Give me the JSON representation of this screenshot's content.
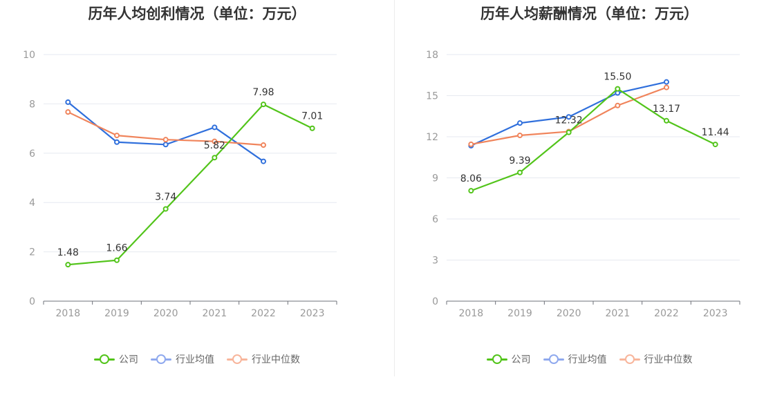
{
  "chart_data": [
    {
      "type": "line",
      "title": "历年人均创利情况（单位：万元）",
      "categories": [
        "2018",
        "2019",
        "2020",
        "2021",
        "2022",
        "2023"
      ],
      "ylim": [
        0,
        10
      ],
      "yticks": [
        0,
        2,
        4,
        6,
        8,
        10
      ],
      "grid": true,
      "legend_position": "bottom",
      "series": [
        {
          "name": "公司",
          "color": "#52c41a",
          "values": [
            1.48,
            1.66,
            3.74,
            5.82,
            7.98,
            7.01
          ],
          "labels": [
            "1.48",
            "1.66",
            "3.74",
            "5.82",
            "7.98",
            "7.01"
          ]
        },
        {
          "name": "行业均值",
          "color": "#2f6fdc",
          "values": [
            8.07,
            6.45,
            6.35,
            7.05,
            5.67,
            null
          ]
        },
        {
          "name": "行业中位数",
          "color": "#f0845b",
          "values": [
            7.67,
            6.72,
            6.55,
            6.48,
            6.33,
            null
          ]
        }
      ]
    },
    {
      "type": "line",
      "title": "历年人均薪酬情况（单位：万元）",
      "categories": [
        "2018",
        "2019",
        "2020",
        "2021",
        "2022",
        "2023"
      ],
      "ylim": [
        0,
        18
      ],
      "yticks": [
        0,
        3,
        6,
        9,
        12,
        15,
        18
      ],
      "grid": true,
      "legend_position": "bottom",
      "series": [
        {
          "name": "公司",
          "color": "#52c41a",
          "values": [
            8.06,
            9.39,
            12.32,
            15.5,
            13.17,
            11.44
          ],
          "labels": [
            "8.06",
            "9.39",
            "12.32",
            "15.50",
            "13.17",
            "11.44"
          ]
        },
        {
          "name": "行业均值",
          "color": "#2f6fdc",
          "values": [
            11.35,
            13.0,
            13.45,
            15.2,
            16.0,
            null
          ]
        },
        {
          "name": "行业中位数",
          "color": "#f0845b",
          "values": [
            11.45,
            12.1,
            12.38,
            14.28,
            15.6,
            null
          ]
        }
      ]
    }
  ],
  "legend": [
    {
      "label": "公司",
      "line_color": "#52c41a",
      "circle_color": "#52c41a"
    },
    {
      "label": "行业均值",
      "line_color": "#8fa9ee",
      "circle_color": "#8fa9ee"
    },
    {
      "label": "行业中位数",
      "line_color": "#f8b59b",
      "circle_color": "#f8b59b"
    }
  ]
}
